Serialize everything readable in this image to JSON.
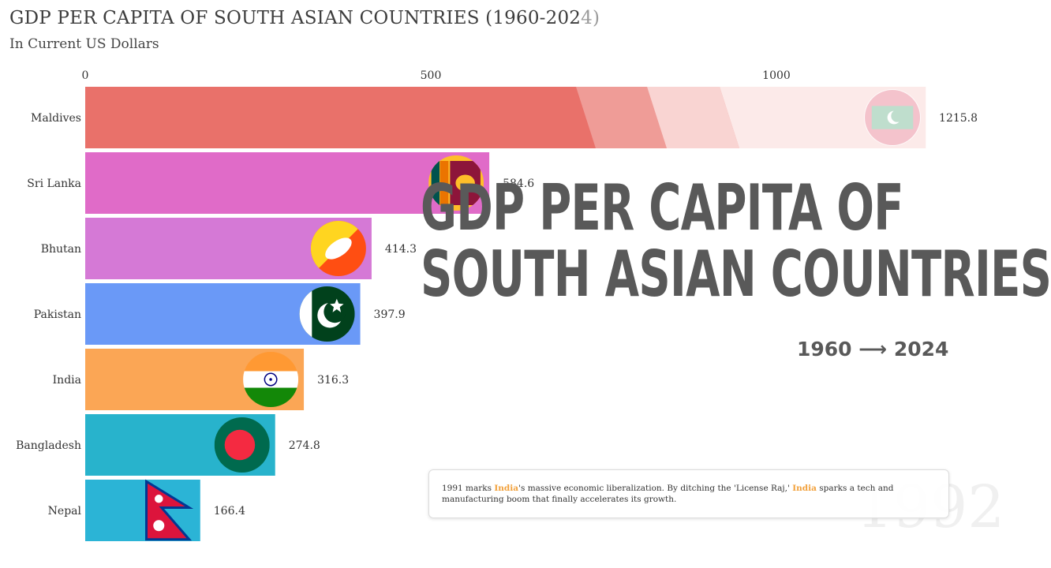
{
  "header": {
    "title_main": "GDP PER CAPITA OF SOUTH ASIAN COUNTRIES (1960-202",
    "title_tail": "4)",
    "subtitle": "In Current US Dollars"
  },
  "overlay": {
    "line1": "GDP PER CAPITA OF",
    "line2": "SOUTH ASIAN COUNTRIES",
    "years": "1960 ⟶ 2024"
  },
  "annotation": {
    "part1": "1991 marks ",
    "hl1": "India",
    "part2": "'s massive economic liberalization. By ditching the 'License Raj,' ",
    "hl2": "India",
    "part3": " sparks a tech and manufacturing boom that finally accelerates its growth.",
    "highlight_color": "#f2a03a"
  },
  "watermark_year": "1992",
  "chart_data": {
    "type": "bar",
    "orientation": "horizontal",
    "title": "GDP PER CAPITA OF SOUTH ASIAN COUNTRIES (1960-2024)",
    "subtitle": "In Current US Dollars",
    "xlim": [
      0,
      1200
    ],
    "xticks": [
      0,
      500,
      1000
    ],
    "grid": false,
    "categories": [
      "Maldives",
      "Sri Lanka",
      "Bhutan",
      "Pakistan",
      "India",
      "Bangladesh",
      "Nepal"
    ],
    "values": [
      1215.8,
      584.6,
      414.3,
      397.9,
      316.3,
      274.8,
      166.4
    ],
    "value_labels": [
      "1215.8",
      "584.6",
      "414.3",
      "397.9",
      "316.3",
      "274.8",
      "166.4"
    ],
    "colors": [
      "#e9716a",
      "#e06bc8",
      "#d579d6",
      "#6a99f7",
      "#fba655",
      "#28b3cc",
      "#2bb4d6"
    ],
    "flags": [
      "maldives-flag",
      "sri-lanka-flag",
      "bhutan-flag",
      "pakistan-flag",
      "india-flag",
      "bangladesh-flag",
      "nepal-flag"
    ]
  }
}
